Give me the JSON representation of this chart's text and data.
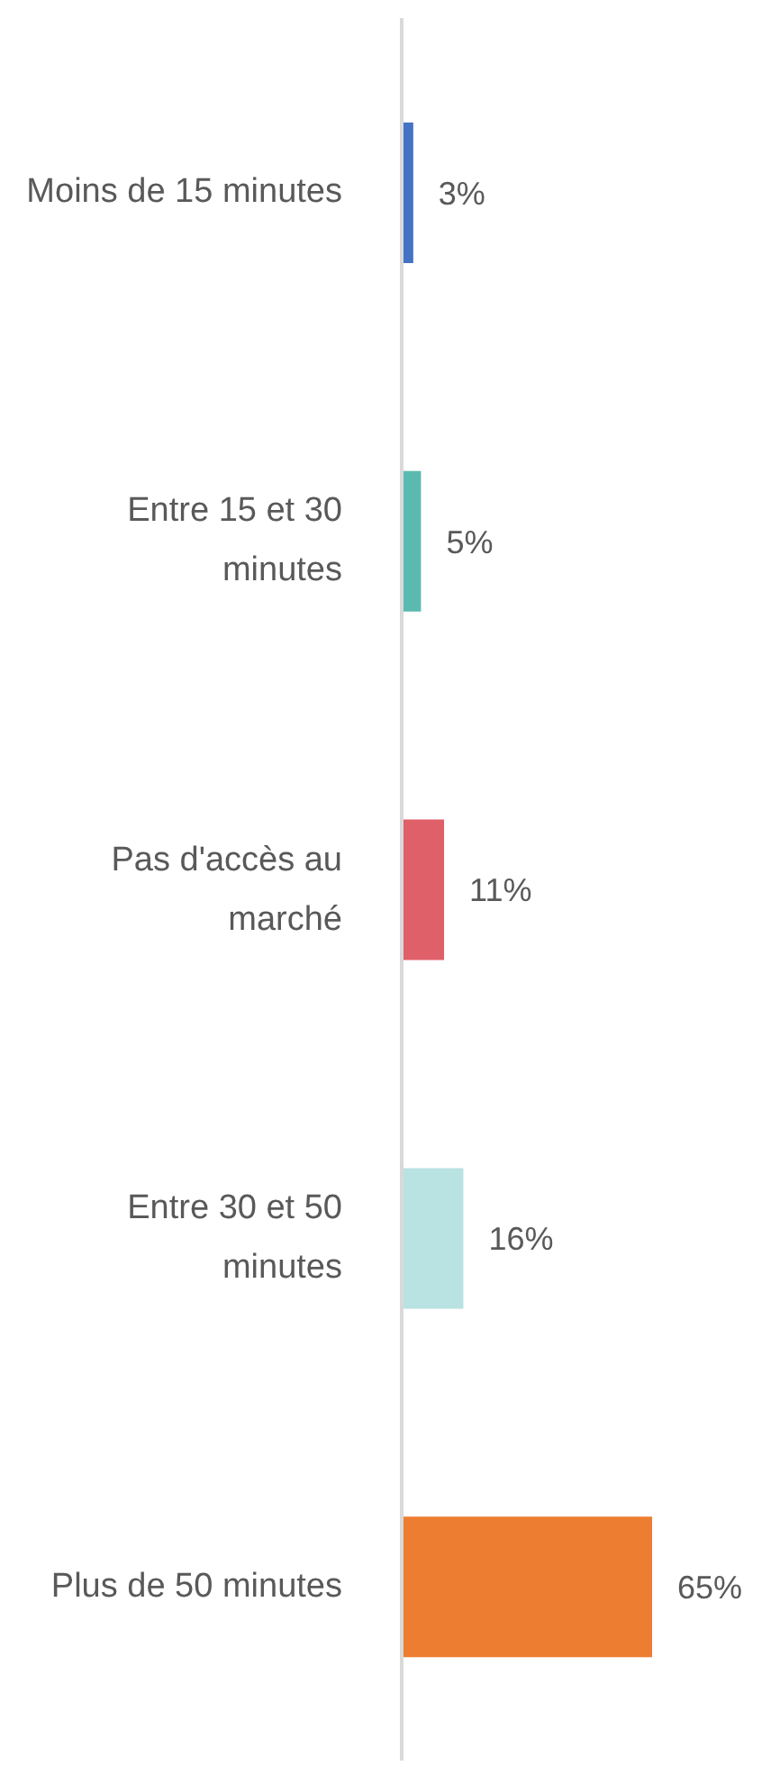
{
  "chart_data": {
    "type": "bar",
    "orientation": "horizontal",
    "categories": [
      "Moins de 15 minutes",
      "Entre 15 et 30 minutes",
      "Pas d'accès au marché",
      "Entre 30 et 50 minutes",
      "Plus de 50 minutes"
    ],
    "values": [
      3,
      5,
      11,
      16,
      65
    ],
    "colors": [
      "#4472c4",
      "#5bbab0",
      "#e0606a",
      "#b9e2e2",
      "#ed7d31"
    ],
    "value_labels": [
      "3%",
      "5%",
      "11%",
      "16%",
      "65%"
    ],
    "grid": false,
    "legend": false,
    "tick_labels": "y"
  }
}
